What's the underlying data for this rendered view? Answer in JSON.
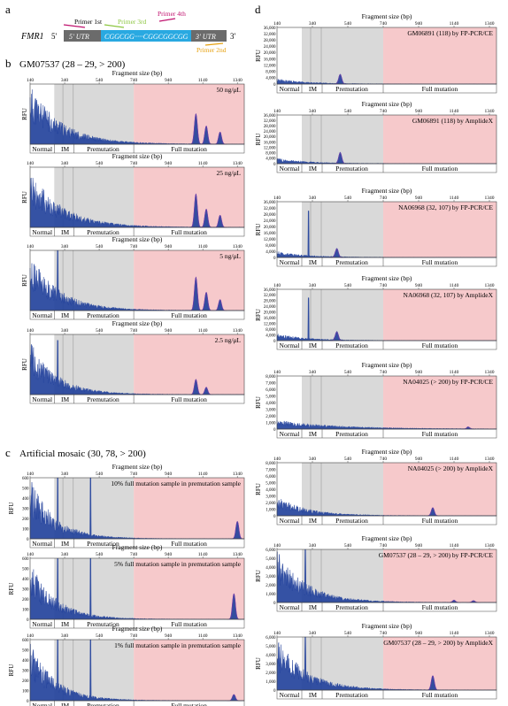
{
  "panel_letters": {
    "a": "a",
    "b": "b",
    "c": "c",
    "d": "d"
  },
  "section_titles": {
    "b": "GM07537 (28 – 29, > 200)",
    "c": "Artificial mosaic (30, 78, > 200)"
  },
  "schematic": {
    "gene": "FMR1",
    "five_prime": "5'",
    "three_prime": "3'",
    "utr_left": "5' UTR",
    "repeat": "CGGCGG·····CGGCGGCGG",
    "utr_right": "3' UTR",
    "primers": [
      "Primer 1st",
      "Primer 2nd",
      "Primer 3rd",
      "Primer 4th"
    ],
    "colors": {
      "utr": "#6b6b6b",
      "repeat": "#29a9e1",
      "primer1": "#c0136f",
      "primer2": "#e7a10f",
      "primer3": "#8cc63f",
      "primer4": "#c0136f"
    }
  },
  "region_labels": [
    "Normal",
    "IM",
    "Premutation",
    "Full mutation"
  ],
  "axis_labels": {
    "fragment": "Fragment size (bp)",
    "rfu": "RFU"
  },
  "colors": {
    "trace": "#1f3f9a",
    "peak_line": "#6a3da8",
    "normal_bg": "#ffffff",
    "premut_bg": "#d9d9d9",
    "full_bg": "#f6c9cb"
  },
  "chart_data": [
    {
      "id": "b1",
      "type": "area",
      "label": "50 ng/μL",
      "ylabel": "RFU",
      "x_ticks": [
        140,
        340,
        540,
        740,
        940,
        1140,
        1340
      ],
      "y_ticks": [],
      "xlim": [
        140,
        1380
      ],
      "ylim": [
        0,
        1
      ],
      "peaks": [
        [
          1100,
          0.5
        ],
        [
          1160,
          0.3
        ],
        [
          1240,
          0.2
        ]
      ],
      "spikes": [],
      "decay_amp": 1.0,
      "decay_rate": 0.0055
    },
    {
      "id": "b2",
      "type": "area",
      "label": "25 ng/μL",
      "ylabel": "RFU",
      "x_ticks": [
        140,
        340,
        540,
        740,
        940,
        1140,
        1340
      ],
      "y_ticks": [],
      "xlim": [
        140,
        1380
      ],
      "ylim": [
        0,
        1
      ],
      "peaks": [
        [
          1100,
          0.55
        ],
        [
          1160,
          0.3
        ],
        [
          1240,
          0.2
        ]
      ],
      "spikes": [],
      "decay_amp": 1.0,
      "decay_rate": 0.0055
    },
    {
      "id": "b3",
      "type": "area",
      "label": "5 ng/μL",
      "ylabel": "RFU",
      "x_ticks": [
        140,
        340,
        540,
        740,
        940,
        1140,
        1340
      ],
      "y_ticks": [],
      "xlim": [
        140,
        1380
      ],
      "ylim": [
        0,
        1
      ],
      "peaks": [
        [
          1100,
          0.55
        ],
        [
          1160,
          0.3
        ],
        [
          1240,
          0.18
        ]
      ],
      "spikes": [
        [
          300,
          1
        ]
      ],
      "decay_amp": 0.95,
      "decay_rate": 0.006
    },
    {
      "id": "b4",
      "type": "area",
      "label": "2.5 ng/μL",
      "ylabel": "RFU",
      "x_ticks": [
        140,
        340,
        540,
        740,
        940,
        1140,
        1340
      ],
      "y_ticks": [],
      "xlim": [
        140,
        1380
      ],
      "ylim": [
        0,
        1
      ],
      "peaks": [
        [
          1100,
          0.25
        ],
        [
          1160,
          0.12
        ]
      ],
      "spikes": [
        [
          300,
          0.9
        ]
      ],
      "decay_amp": 0.9,
      "decay_rate": 0.0065
    },
    {
      "id": "c1",
      "type": "area",
      "label": "10% full mutation sample in premutation sample",
      "ylabel": "RFU",
      "x_ticks": [
        140,
        340,
        540,
        740,
        940,
        1140,
        1340
      ],
      "y_ticks": [
        0,
        100,
        200,
        300,
        400,
        500,
        600
      ],
      "xlim": [
        140,
        1380
      ],
      "ylim": [
        0,
        600
      ],
      "peaks": [
        [
          1340,
          170
        ]
      ],
      "spikes": [
        [
          300,
          600
        ],
        [
          490,
          600
        ]
      ],
      "decay_amp": 600,
      "decay_rate": 0.007
    },
    {
      "id": "c2",
      "type": "area",
      "label": "5% full mutation sample in premutation sample",
      "ylabel": "RFU",
      "x_ticks": [
        140,
        340,
        540,
        740,
        940,
        1140,
        1340
      ],
      "y_ticks": [
        0,
        100,
        200,
        300,
        400,
        500,
        600
      ],
      "xlim": [
        140,
        1380
      ],
      "ylim": [
        0,
        600
      ],
      "peaks": [
        [
          1320,
          250
        ]
      ],
      "spikes": [
        [
          300,
          600
        ],
        [
          490,
          600
        ]
      ],
      "decay_amp": 600,
      "decay_rate": 0.007
    },
    {
      "id": "c3",
      "type": "area",
      "label": "1% full mutation sample in premutation sample",
      "ylabel": "RFU",
      "x_ticks": [
        140,
        340,
        540,
        740,
        940,
        1140,
        1340
      ],
      "y_ticks": [
        0,
        100,
        200,
        300,
        400,
        500,
        600
      ],
      "xlim": [
        140,
        1380
      ],
      "ylim": [
        0,
        600
      ],
      "peaks": [
        [
          1320,
          60
        ]
      ],
      "spikes": [
        [
          300,
          600
        ],
        [
          490,
          600
        ]
      ],
      "decay_amp": 600,
      "decay_rate": 0.007
    },
    {
      "id": "d1",
      "type": "area",
      "label": "GM06891 (118) by FP-PCR/CE",
      "ylabel": "RFU",
      "x_ticks": [
        140,
        340,
        540,
        740,
        940,
        1140,
        1340
      ],
      "y_ticks": [
        0,
        4000,
        8000,
        12000,
        16000,
        20000,
        24000,
        28000,
        32000,
        36000
      ],
      "xlim": [
        140,
        1380
      ],
      "ylim": [
        0,
        36000
      ],
      "peaks": [
        [
          497,
          6000
        ]
      ],
      "spikes": [],
      "decay_amp": 3500,
      "decay_rate": 0.006
    },
    {
      "id": "d2",
      "type": "area",
      "label": "GM06891 (118) by AmplideX",
      "ylabel": "RFU",
      "x_ticks": [
        140,
        340,
        540,
        740,
        940,
        1140,
        1340
      ],
      "y_ticks": [
        0,
        4000,
        8000,
        12000,
        16000,
        20000,
        24000,
        28000,
        32000,
        36000
      ],
      "xlim": [
        140,
        1380
      ],
      "ylim": [
        0,
        36000
      ],
      "peaks": [
        [
          497,
          8000
        ]
      ],
      "spikes": [],
      "decay_amp": 4500,
      "decay_rate": 0.006
    },
    {
      "id": "d3",
      "type": "area",
      "label": "NA06968 (32, 107) by FP-PCR/CE",
      "ylabel": "RFU",
      "x_ticks": [
        140,
        340,
        540,
        740,
        940,
        1140,
        1340
      ],
      "y_ticks": [
        0,
        4000,
        8000,
        12000,
        16000,
        20000,
        24000,
        28000,
        32000,
        36000
      ],
      "xlim": [
        140,
        1380
      ],
      "ylim": [
        0,
        36000
      ],
      "peaks": [
        [
          478,
          5500
        ]
      ],
      "spikes": [
        [
          318,
          30000
        ]
      ],
      "decay_amp": 4000,
      "decay_rate": 0.006
    },
    {
      "id": "d4",
      "type": "area",
      "label": "NA06968 (32, 107) by AmplideX",
      "ylabel": "RFU",
      "x_ticks": [
        140,
        340,
        540,
        740,
        940,
        1140,
        1340
      ],
      "y_ticks": [
        0,
        4000,
        8000,
        12000,
        16000,
        20000,
        24000,
        28000,
        32000,
        36000
      ],
      "xlim": [
        140,
        1380
      ],
      "ylim": [
        0,
        36000
      ],
      "peaks": [
        [
          478,
          6000
        ]
      ],
      "spikes": [
        [
          318,
          30000
        ]
      ],
      "decay_amp": 5000,
      "decay_rate": 0.006
    },
    {
      "id": "d5",
      "type": "area",
      "label": "NA04025 (> 200) by FP-PCR/CE",
      "ylabel": "RFU",
      "x_ticks": [
        140,
        340,
        540,
        740,
        940,
        1140,
        1340
      ],
      "y_ticks": [
        0,
        1000,
        2000,
        3000,
        4000,
        5000,
        6000,
        7000,
        8000
      ],
      "xlim": [
        140,
        1380
      ],
      "ylim": [
        0,
        8000
      ],
      "peaks": [
        [
          1220,
          300
        ]
      ],
      "spikes": [],
      "decay_amp": 1400,
      "decay_rate": 0.003
    },
    {
      "id": "d6",
      "type": "area",
      "label": "NA04025 (> 200) by AmplideX",
      "ylabel": "RFU",
      "x_ticks": [
        140,
        340,
        540,
        740,
        940,
        1140,
        1340
      ],
      "y_ticks": [
        0,
        1000,
        2000,
        3000,
        4000,
        5000,
        6000,
        7000,
        8000
      ],
      "xlim": [
        140,
        1380
      ],
      "ylim": [
        0,
        8000
      ],
      "peaks": [
        [
          1020,
          1200
        ]
      ],
      "spikes": [],
      "decay_amp": 3000,
      "decay_rate": 0.006
    },
    {
      "id": "d7",
      "type": "area",
      "label": "GM07537 (28 – 29, > 200) by FP-PCR/CE",
      "ylabel": "RFU",
      "x_ticks": [
        140,
        340,
        540,
        740,
        940,
        1140,
        1340
      ],
      "y_ticks": [
        0,
        1000,
        2000,
        3000,
        4000,
        5000,
        6000
      ],
      "xlim": [
        140,
        1380
      ],
      "ylim": [
        0,
        6000
      ],
      "peaks": [
        [
          1140,
          250
        ],
        [
          1250,
          200
        ]
      ],
      "spikes": [
        [
          300,
          6000
        ]
      ],
      "decay_amp": 6000,
      "decay_rate": 0.006
    },
    {
      "id": "d8",
      "type": "area",
      "label": "GM07537 (28 – 29, > 200) by AmplideX",
      "ylabel": "RFU",
      "x_ticks": [
        140,
        340,
        540,
        740,
        940,
        1140,
        1340
      ],
      "y_ticks": [
        0,
        1000,
        2000,
        3000,
        4000,
        5000,
        6000
      ],
      "xlim": [
        140,
        1380
      ],
      "ylim": [
        0,
        6000
      ],
      "peaks": [
        [
          1020,
          1600
        ]
      ],
      "spikes": [
        [
          300,
          6000
        ]
      ],
      "decay_amp": 6000,
      "decay_rate": 0.006
    }
  ]
}
